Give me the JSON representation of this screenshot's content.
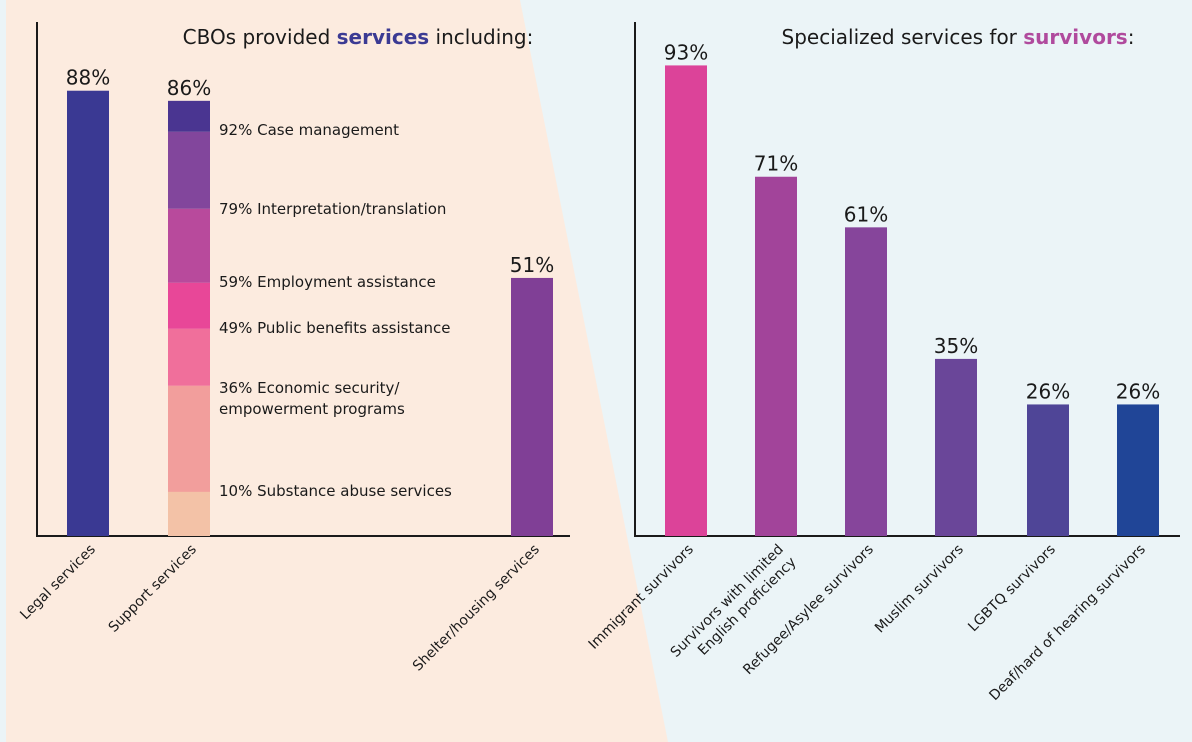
{
  "chart_data": [
    {
      "type": "bar",
      "title_parts": [
        "CBOs provided ",
        "services",
        " including:"
      ],
      "title_highlight_color": "#3b3a93",
      "categories": [
        "Legal services",
        "Support services",
        "Shelter/housing services"
      ],
      "values": [
        88,
        86,
        51
      ],
      "value_labels": [
        "88%",
        "86%",
        "51%"
      ],
      "bar_colors": [
        "#3a3993",
        null,
        "#803f96"
      ],
      "ylim": [
        0,
        100
      ],
      "support_breakdown": [
        {
          "label": "92% Case management",
          "value": 92,
          "color": "#4a3591"
        },
        {
          "label": "79% Interpretation/translation",
          "value": 79,
          "color": "#82469c"
        },
        {
          "label": "59% Employment assistance",
          "value": 59,
          "color": "#b84a9c"
        },
        {
          "label": "49% Public benefits assistance",
          "value": 49,
          "color": "#e84798"
        },
        {
          "label_lines": [
            "36% Economic security/",
            "empowerment programs"
          ],
          "value": 36,
          "color": "#f06f9b"
        },
        {
          "label": "10% Substance abuse services",
          "value": 10,
          "color": "#f29e9c"
        }
      ],
      "support_breakdown_base_color": "#f3c2a7"
    },
    {
      "type": "bar",
      "title_parts": [
        "Specialized services for ",
        "survivors",
        ":"
      ],
      "title_highlight_color": "#b04a9d",
      "categories": [
        "Immigrant survivors",
        "Survivors with limited English proficiency",
        "Refugee/Asylee survivors",
        "Muslim survivors",
        "LGBTQ survivors",
        "Deaf/hard of hearing survivors"
      ],
      "category_lines": [
        [
          "Immigrant survivors"
        ],
        [
          "Survivors with limited",
          "English proficiency"
        ],
        [
          "Refugee/Asylee survivors"
        ],
        [
          "Muslim survivors"
        ],
        [
          "LGBTQ survivors"
        ],
        [
          "Deaf/hard of hearing survivors"
        ]
      ],
      "values": [
        93,
        71,
        61,
        35,
        26,
        26
      ],
      "value_labels": [
        "93%",
        "71%",
        "61%",
        "35%",
        "26%",
        "26%"
      ],
      "bar_colors": [
        "#dc4399",
        "#a2449a",
        "#86459b",
        "#6a4699",
        "#4f4597",
        "#204597"
      ],
      "ylim": [
        0,
        100
      ]
    }
  ],
  "colors": {
    "left_panel": "#fcebdf",
    "right_panel": "#ebf4f7",
    "axis": "#1a1a1a"
  }
}
